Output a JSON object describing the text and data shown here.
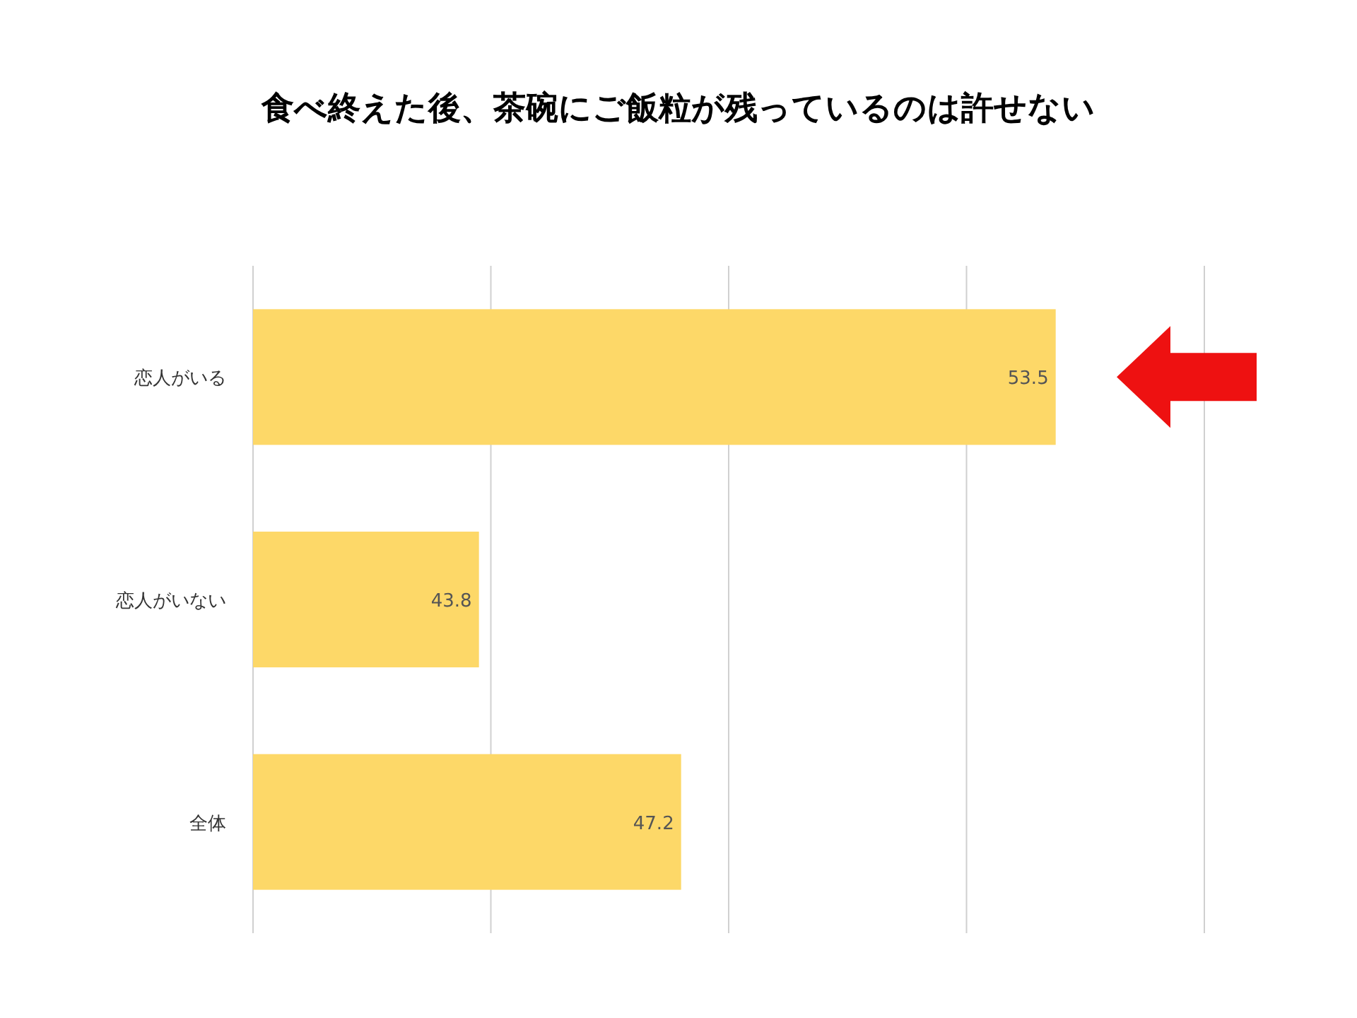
{
  "chart_data": {
    "type": "bar",
    "orientation": "horizontal",
    "title": "食べ終えた後、茶碗にご飯粒が残っているのは許せない",
    "categories": [
      "恋人がいる",
      "恋人がいない",
      "全体"
    ],
    "values": [
      53.5,
      43.8,
      47.2
    ],
    "color": "#fdd868",
    "xlim": [
      40,
      56
    ],
    "xticks": [
      {
        "value": 40,
        "label": null
      },
      {
        "value": 44,
        "label": null
      },
      {
        "value": 48,
        "label": null
      },
      {
        "value": 52,
        "label": null
      },
      {
        "value": 56,
        "label": null
      }
    ],
    "grid": "x",
    "tick_labels": "y",
    "data_labels": true
  }
}
